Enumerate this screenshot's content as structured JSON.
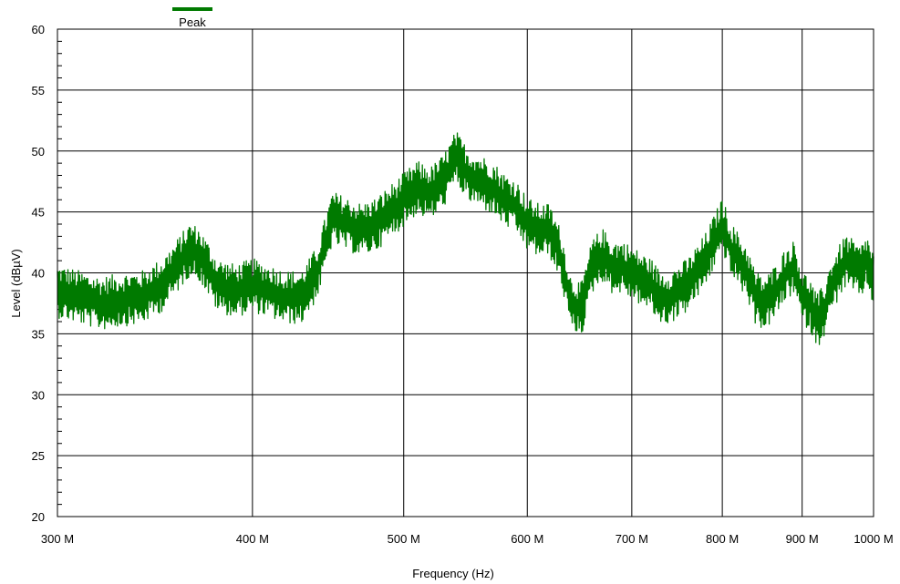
{
  "chart_data": {
    "type": "line",
    "xlabel": "Frequency (Hz)",
    "ylabel": "Level (dBµV)",
    "x_scale": "log",
    "xlim": [
      300,
      1000
    ],
    "ylim": [
      20,
      60
    ],
    "x_ticks": [
      300,
      400,
      500,
      600,
      700,
      800,
      900,
      1000
    ],
    "x_tick_labels": [
      "300 M",
      "400 M",
      "500 M",
      "600 M",
      "700 M",
      "800 M",
      "900 M",
      "1000 M"
    ],
    "y_ticks": [
      20,
      25,
      30,
      35,
      40,
      45,
      50,
      55,
      60
    ],
    "y_tick_labels": [
      "20",
      "25",
      "30",
      "35",
      "40",
      "45",
      "50",
      "55",
      "60"
    ],
    "grid": true,
    "legend_position": "top-left",
    "series": [
      {
        "name": "Peak",
        "color": "#007a00",
        "x": [
          300,
          310,
          320,
          330,
          340,
          350,
          360,
          365,
          370,
          380,
          390,
          400,
          410,
          420,
          430,
          440,
          450,
          460,
          470,
          480,
          490,
          500,
          510,
          520,
          530,
          540,
          550,
          560,
          570,
          580,
          590,
          600,
          610,
          620,
          630,
          640,
          650,
          660,
          670,
          680,
          690,
          700,
          710,
          720,
          730,
          740,
          750,
          760,
          770,
          780,
          790,
          800,
          810,
          820,
          830,
          840,
          850,
          860,
          870,
          880,
          890,
          900,
          910,
          920,
          930,
          940,
          950,
          960,
          970,
          980,
          990,
          1000
        ],
        "y": [
          38.5,
          38,
          37.5,
          37.8,
          38,
          39,
          41,
          42,
          41.5,
          39,
          38.5,
          39,
          38.5,
          38,
          38,
          40,
          44.5,
          44,
          43.5,
          44,
          45,
          46,
          47,
          46.5,
          47.5,
          49.5,
          48,
          47.5,
          47,
          46,
          45.5,
          44,
          43.5,
          43.5,
          41.5,
          37.5,
          37,
          40.5,
          41.5,
          40.5,
          40.5,
          40,
          39.5,
          39,
          38,
          38,
          38.5,
          39,
          40,
          41,
          42.5,
          44,
          42,
          41,
          40,
          38,
          37.5,
          38,
          39,
          40,
          40.5,
          38,
          37.5,
          36,
          37,
          39,
          40,
          41,
          40.5,
          40,
          41,
          39.5
        ]
      }
    ]
  },
  "legend": {
    "label": "Peak"
  }
}
